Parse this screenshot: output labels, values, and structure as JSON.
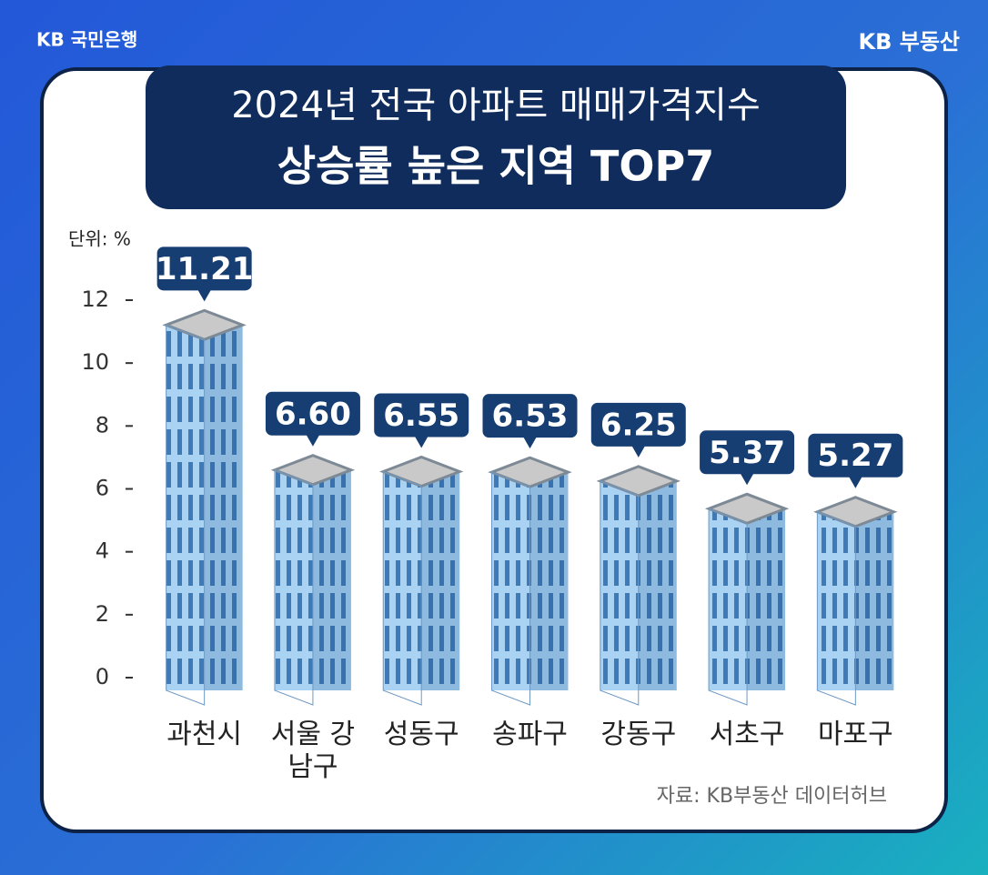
{
  "logo": "KB 국민은행",
  "brand": "KB 부동산",
  "chart_data": {
    "type": "bar",
    "title": "2024년 전국 아파트 매매가격지수",
    "subtitle": "상승률 높은 지역 TOP7",
    "unit": "단위: %",
    "source": "자료: KB부동산 데이터허브",
    "categories": [
      "과천시",
      "서울 강남구",
      "성동구",
      "송파구",
      "강동구",
      "서초구",
      "마포구"
    ],
    "values": [
      11.21,
      6.6,
      6.55,
      6.53,
      6.25,
      5.37,
      5.27
    ],
    "value_labels": [
      "11.21",
      "6.60",
      "6.55",
      "6.53",
      "6.25",
      "5.37",
      "5.27"
    ],
    "color": "#a9d2f3",
    "ylim": [
      0,
      12
    ],
    "yticks": [
      0,
      2,
      4,
      6,
      8,
      10,
      12
    ]
  }
}
